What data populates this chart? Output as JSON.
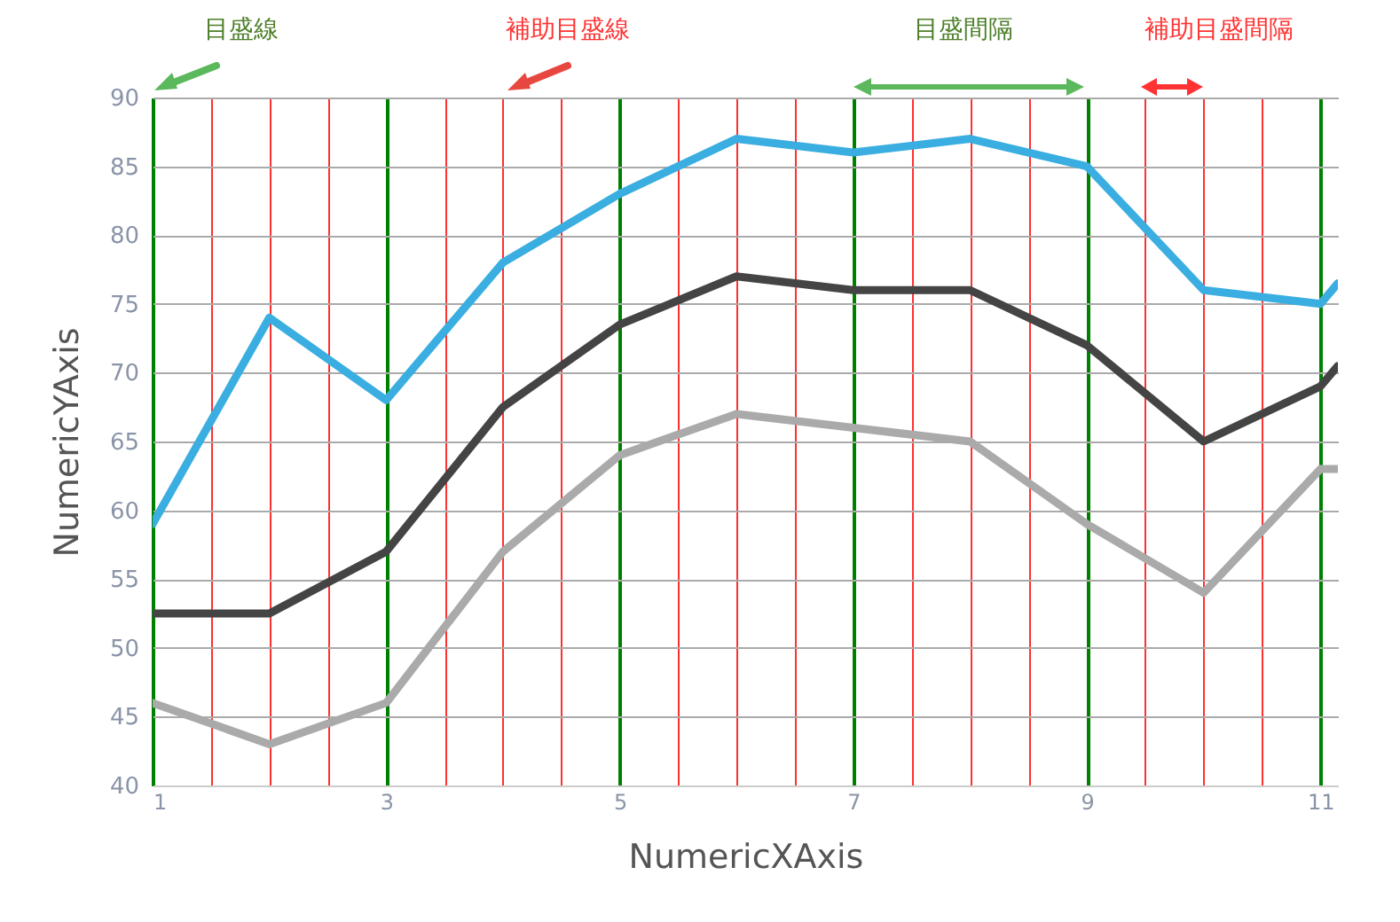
{
  "chart_data": {
    "type": "line",
    "xlabel": "NumericXAxis",
    "ylabel": "NumericYAxis",
    "annotations": [
      "目盛線",
      "補助目盛線",
      "目盛間隔",
      "補助目盛間隔"
    ],
    "x": [
      1,
      2,
      3,
      4,
      5,
      6,
      7,
      8,
      9,
      10,
      11,
      11.15
    ],
    "series": [
      {
        "color": "#3aaee0",
        "values": [
          59,
          74,
          68,
          78,
          83,
          87,
          86,
          87,
          85,
          76,
          75,
          76.5
        ]
      },
      {
        "color": "#444444",
        "values": [
          52.5,
          52.5,
          57,
          67.5,
          73.5,
          77,
          76,
          76,
          72,
          65,
          69,
          70.5
        ]
      },
      {
        "color": "#aaaaaa",
        "values": [
          46,
          43,
          46,
          57,
          64,
          67,
          66,
          65,
          59,
          54,
          63,
          63
        ]
      }
    ],
    "xlim": [
      1,
      11.15
    ],
    "xticks": [
      1,
      {
        "value": 1.5,
        "label": null
      },
      {
        "value": 2,
        "label": null
      },
      {
        "value": 2.5,
        "label": null
      },
      3,
      {
        "value": 3.5,
        "label": null
      },
      {
        "value": 4,
        "label": null
      },
      {
        "value": 4.5,
        "label": null
      },
      5,
      {
        "value": 5.5,
        "label": null
      },
      {
        "value": 6,
        "label": null
      },
      {
        "value": 6.5,
        "label": null
      },
      7,
      {
        "value": 7.5,
        "label": null
      },
      {
        "value": 8,
        "label": null
      },
      {
        "value": 8.5,
        "label": null
      },
      9,
      {
        "value": 9.5,
        "label": null
      },
      {
        "value": 10,
        "label": null
      },
      {
        "value": 10.5,
        "label": null
      },
      11
    ],
    "ylim": [
      40,
      90
    ],
    "yticks": [
      40,
      45,
      50,
      55,
      60,
      65,
      70,
      75,
      80,
      85,
      90
    ],
    "grid": true,
    "marker": "none",
    "line_style": "solid",
    "legend": false
  }
}
